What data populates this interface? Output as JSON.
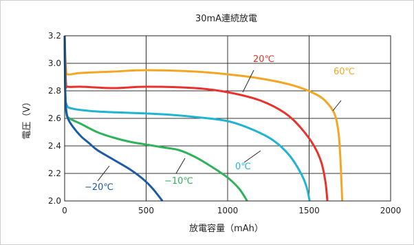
{
  "chart_data": {
    "type": "line",
    "title": "30mA連続放電",
    "xlabel": "放電容量（mAh）",
    "ylabel": "電圧（V）",
    "xlim": [
      0,
      2000
    ],
    "ylim": [
      2.0,
      3.2
    ],
    "xticks": [
      0,
      500,
      1000,
      1500,
      2000
    ],
    "yticks": [
      2.0,
      2.2,
      2.4,
      2.6,
      2.8,
      3.0,
      3.2
    ],
    "x_tick_labels": [
      "0",
      "500",
      "1000",
      "1500",
      "2000"
    ],
    "y_tick_labels": [
      "2.0",
      "2.2",
      "2.4",
      "2.6",
      "2.8",
      "3.0",
      "3.2"
    ],
    "grid": true,
    "legend": "none",
    "series": [
      {
        "name": "60℃",
        "color": "#f4a623",
        "points": [
          [
            0,
            3.2
          ],
          [
            8,
            2.96
          ],
          [
            20,
            2.92
          ],
          [
            100,
            2.93
          ],
          [
            300,
            2.94
          ],
          [
            500,
            2.95
          ],
          [
            800,
            2.94
          ],
          [
            1000,
            2.92
          ],
          [
            1200,
            2.89
          ],
          [
            1400,
            2.84
          ],
          [
            1550,
            2.77
          ],
          [
            1620,
            2.7
          ],
          [
            1660,
            2.62
          ],
          [
            1680,
            2.5
          ],
          [
            1690,
            2.35
          ],
          [
            1698,
            2.15
          ],
          [
            1703,
            2.0
          ]
        ]
      },
      {
        "name": "20℃",
        "color": "#e8322b",
        "points": [
          [
            0,
            3.2
          ],
          [
            8,
            2.86
          ],
          [
            20,
            2.83
          ],
          [
            100,
            2.83
          ],
          [
            300,
            2.82
          ],
          [
            500,
            2.83
          ],
          [
            800,
            2.82
          ],
          [
            1000,
            2.79
          ],
          [
            1200,
            2.73
          ],
          [
            1350,
            2.64
          ],
          [
            1450,
            2.53
          ],
          [
            1530,
            2.4
          ],
          [
            1575,
            2.28
          ],
          [
            1600,
            2.14
          ],
          [
            1612,
            2.0
          ]
        ]
      },
      {
        "name": "0℃",
        "color": "#1fb4d2",
        "points": [
          [
            0,
            3.2
          ],
          [
            4,
            2.8
          ],
          [
            12,
            2.7
          ],
          [
            50,
            2.67
          ],
          [
            200,
            2.65
          ],
          [
            400,
            2.64
          ],
          [
            600,
            2.63
          ],
          [
            800,
            2.61
          ],
          [
            1000,
            2.58
          ],
          [
            1150,
            2.52
          ],
          [
            1280,
            2.44
          ],
          [
            1380,
            2.33
          ],
          [
            1450,
            2.2
          ],
          [
            1485,
            2.1
          ],
          [
            1503,
            2.0
          ]
        ]
      },
      {
        "name": "−10℃",
        "color": "#2fb25a",
        "points": [
          [
            0,
            3.2
          ],
          [
            4,
            2.82
          ],
          [
            10,
            2.64
          ],
          [
            30,
            2.6
          ],
          [
            100,
            2.56
          ],
          [
            200,
            2.5
          ],
          [
            300,
            2.46
          ],
          [
            400,
            2.43
          ],
          [
            500,
            2.41
          ],
          [
            600,
            2.39
          ],
          [
            700,
            2.37
          ],
          [
            800,
            2.32
          ],
          [
            900,
            2.25
          ],
          [
            1000,
            2.17
          ],
          [
            1070,
            2.09
          ],
          [
            1120,
            2.0
          ]
        ]
      },
      {
        "name": "−20℃",
        "color": "#1a5aa6",
        "points": [
          [
            0,
            3.2
          ],
          [
            3,
            2.84
          ],
          [
            8,
            2.68
          ],
          [
            20,
            2.6
          ],
          [
            50,
            2.54
          ],
          [
            100,
            2.47
          ],
          [
            150,
            2.42
          ],
          [
            200,
            2.37
          ],
          [
            300,
            2.3
          ],
          [
            400,
            2.23
          ],
          [
            480,
            2.16
          ],
          [
            540,
            2.09
          ],
          [
            600,
            2.0
          ]
        ]
      }
    ],
    "annotations": [
      {
        "text": "60℃",
        "series": "60℃"
      },
      {
        "text": "20℃",
        "series": "20℃"
      },
      {
        "text": "0℃",
        "series": "0℃"
      },
      {
        "text": "−10℃",
        "series": "−10℃"
      },
      {
        "text": "−20℃",
        "series": "−20℃"
      }
    ]
  }
}
